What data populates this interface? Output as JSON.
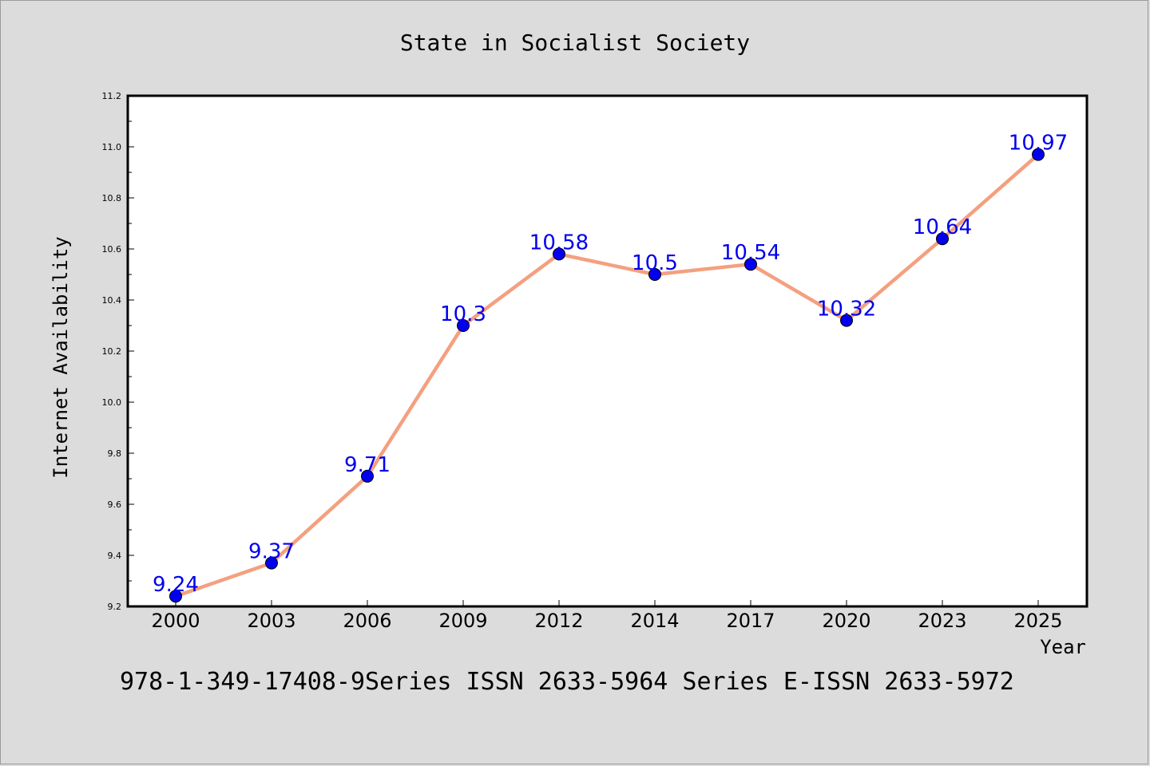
{
  "chart_data": {
    "type": "line",
    "title": "State in Socialist Society",
    "xlabel": "Year",
    "ylabel": "Internet Availability",
    "categories": [
      "2000",
      "2003",
      "2006",
      "2009",
      "2012",
      "2014",
      "2017",
      "2020",
      "2023",
      "2025"
    ],
    "series": [
      {
        "values": [
          9.24,
          9.37,
          9.71,
          10.3,
          10.58,
          10.5,
          10.54,
          10.32,
          10.64,
          10.97
        ],
        "labels": [
          "9.24",
          "9.37",
          "9.71",
          "10.3",
          "10.58",
          "10.5",
          "10.54",
          "10.32",
          "10.64",
          "10.97"
        ]
      }
    ],
    "ylim": [
      9.2,
      11.2
    ],
    "yticks": [
      "9.2",
      "9.4",
      "9.6",
      "9.8",
      "10.0",
      "10.2",
      "10.4",
      "10.6",
      "10.8",
      "11.0",
      "11.2"
    ],
    "grid": false,
    "colors": {
      "line": "#f4a07f",
      "marker": "#0000ee",
      "label": "#0000ee"
    }
  },
  "footer": "978-1-349-17408-9Series ISSN 2633-5964 Series E-ISSN 2633-5972"
}
